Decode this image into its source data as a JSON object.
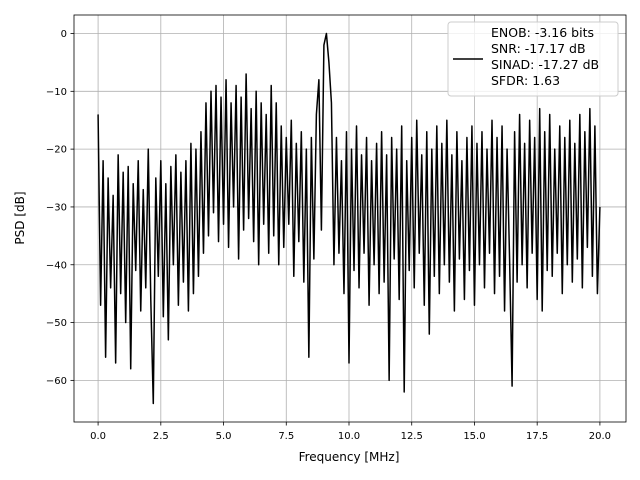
{
  "chart_data": {
    "type": "line",
    "xlabel": "Frequency [MHz]",
    "ylabel": "PSD [dB]",
    "xlim": [
      -0.96,
      21.04
    ],
    "ylim": [
      -67.2,
      3.2
    ],
    "xticks": [
      {
        "value": 0,
        "label": "0.0"
      },
      2.5,
      {
        "value": 5,
        "label": "5.0"
      },
      7.5,
      {
        "value": 10,
        "label": "10.0"
      },
      12.5,
      {
        "value": 15,
        "label": "15.0"
      },
      17.5,
      {
        "value": 20,
        "label": "20.0"
      }
    ],
    "yticks": [
      0,
      {
        "value": -10,
        "label": "−10"
      },
      {
        "value": -20,
        "label": "−20"
      },
      {
        "value": -30,
        "label": "−30"
      },
      {
        "value": -40,
        "label": "−40"
      },
      {
        "value": -50,
        "label": "−50"
      },
      {
        "value": -60,
        "label": "−60"
      }
    ],
    "grid": true,
    "legend": "upper right",
    "x": [
      0,
      0.1,
      0.2,
      0.3,
      0.4,
      0.5,
      0.6,
      0.7,
      0.8,
      0.9,
      1,
      1.1,
      1.2,
      1.3,
      1.4,
      1.5,
      1.6,
      1.7,
      1.8,
      1.9,
      2,
      2.1,
      2.2,
      2.3,
      2.4,
      2.5,
      2.6,
      2.7,
      2.8,
      2.9,
      3,
      3.1,
      3.2,
      3.3,
      3.4,
      3.5,
      3.6,
      3.7,
      3.8,
      3.9,
      4,
      4.1,
      4.2,
      4.3,
      4.4,
      4.5,
      4.6,
      4.7,
      4.8,
      4.9,
      5,
      5.1,
      5.2,
      5.3,
      5.4,
      5.5,
      5.6,
      5.7,
      5.8,
      5.9,
      6,
      6.1,
      6.2,
      6.3,
      6.4,
      6.5,
      6.6,
      6.7,
      6.8,
      6.9,
      7,
      7.1,
      7.2,
      7.3,
      7.4,
      7.5,
      7.6,
      7.7,
      7.8,
      7.9,
      8,
      8.1,
      8.2,
      8.3,
      8.4,
      8.5,
      8.6,
      8.7,
      8.8,
      8.9,
      9,
      9.1,
      9.2,
      9.3,
      9.4,
      9.5,
      9.6,
      9.7,
      9.8,
      9.9,
      10,
      10.1,
      10.2,
      10.3,
      10.4,
      10.5,
      10.6,
      10.7,
      10.8,
      10.9,
      11,
      11.1,
      11.2,
      11.3,
      11.4,
      11.5,
      11.6,
      11.7,
      11.8,
      11.9,
      12,
      12.1,
      12.2,
      12.3,
      12.4,
      12.5,
      12.6,
      12.7,
      12.8,
      12.9,
      13,
      13.1,
      13.2,
      13.3,
      13.4,
      13.5,
      13.6,
      13.7,
      13.8,
      13.9,
      14,
      14.1,
      14.2,
      14.3,
      14.4,
      14.5,
      14.6,
      14.7,
      14.8,
      14.9,
      15,
      15.1,
      15.2,
      15.3,
      15.4,
      15.5,
      15.6,
      15.7,
      15.8,
      15.9,
      16,
      16.1,
      16.2,
      16.3,
      16.4,
      16.5,
      16.6,
      16.7,
      16.8,
      16.9,
      17,
      17.1,
      17.2,
      17.3,
      17.4,
      17.5,
      17.6,
      17.7,
      17.8,
      17.9,
      18,
      18.1,
      18.2,
      18.3,
      18.4,
      18.5,
      18.6,
      18.7,
      18.8,
      18.9,
      19,
      19.1,
      19.2,
      19.3,
      19.4,
      19.5,
      19.6,
      19.7,
      19.8,
      19.9,
      20
    ],
    "series": [
      {
        "name": "ENOB: -3.16 bits\nSNR: -17.17 dB\nSINAD: -17.27 dB\nSFDR: 1.63",
        "color": "#000000",
        "values": [
          -14,
          -47,
          -22,
          -56,
          -25,
          -44,
          -28,
          -57,
          -21,
          -45,
          -24,
          -50,
          -23,
          -58,
          -26,
          -41,
          -22,
          -48,
          -27,
          -44,
          -20,
          -46,
          -64,
          -25,
          -42,
          -22,
          -49,
          -26,
          -53,
          -23,
          -40,
          -21,
          -47,
          -24,
          -43,
          -22,
          -48,
          -19,
          -45,
          -20,
          -42,
          -17,
          -38,
          -12,
          -35,
          -10,
          -31,
          -9,
          -36,
          -11,
          -33,
          -8,
          -37,
          -12,
          -30,
          -9,
          -39,
          -11,
          -34,
          -7,
          -32,
          -13,
          -36,
          -10,
          -40,
          -12,
          -33,
          -14,
          -38,
          -9,
          -35,
          -12,
          -40,
          -16,
          -37,
          -18,
          -33,
          -15,
          -42,
          -19,
          -36,
          -17,
          -43,
          -20,
          -56,
          -18,
          -39,
          -14,
          -8,
          -34,
          -2,
          0,
          -5,
          -12,
          -40,
          -18,
          -38,
          -22,
          -45,
          -17,
          -57,
          -20,
          -41,
          -16,
          -44,
          -21,
          -38,
          -18,
          -47,
          -22,
          -40,
          -19,
          -45,
          -17,
          -43,
          -21,
          -60,
          -18,
          -39,
          -20,
          -46,
          -16,
          -62,
          -22,
          -41,
          -18,
          -44,
          -15,
          -38,
          -21,
          -47,
          -17,
          -52,
          -20,
          -42,
          -16,
          -45,
          -19,
          -40,
          -15,
          -43,
          -21,
          -48,
          -17,
          -39,
          -22,
          -46,
          -18,
          -41,
          -16,
          -47,
          -19,
          -40,
          -17,
          -44,
          -20,
          -38,
          -15,
          -45,
          -18,
          -42,
          -16,
          -48,
          -20,
          -39,
          -61,
          -17,
          -43,
          -14,
          -40,
          -19,
          -44,
          -15,
          -38,
          -18,
          -46,
          -13,
          -48,
          -17,
          -41,
          -14,
          -42,
          -20,
          -38,
          -16,
          -45,
          -18,
          -40,
          -15,
          -43,
          -19,
          -39,
          -14,
          -44,
          -17,
          -37,
          -13,
          -42,
          -16,
          -45,
          -30
        ]
      }
    ]
  }
}
